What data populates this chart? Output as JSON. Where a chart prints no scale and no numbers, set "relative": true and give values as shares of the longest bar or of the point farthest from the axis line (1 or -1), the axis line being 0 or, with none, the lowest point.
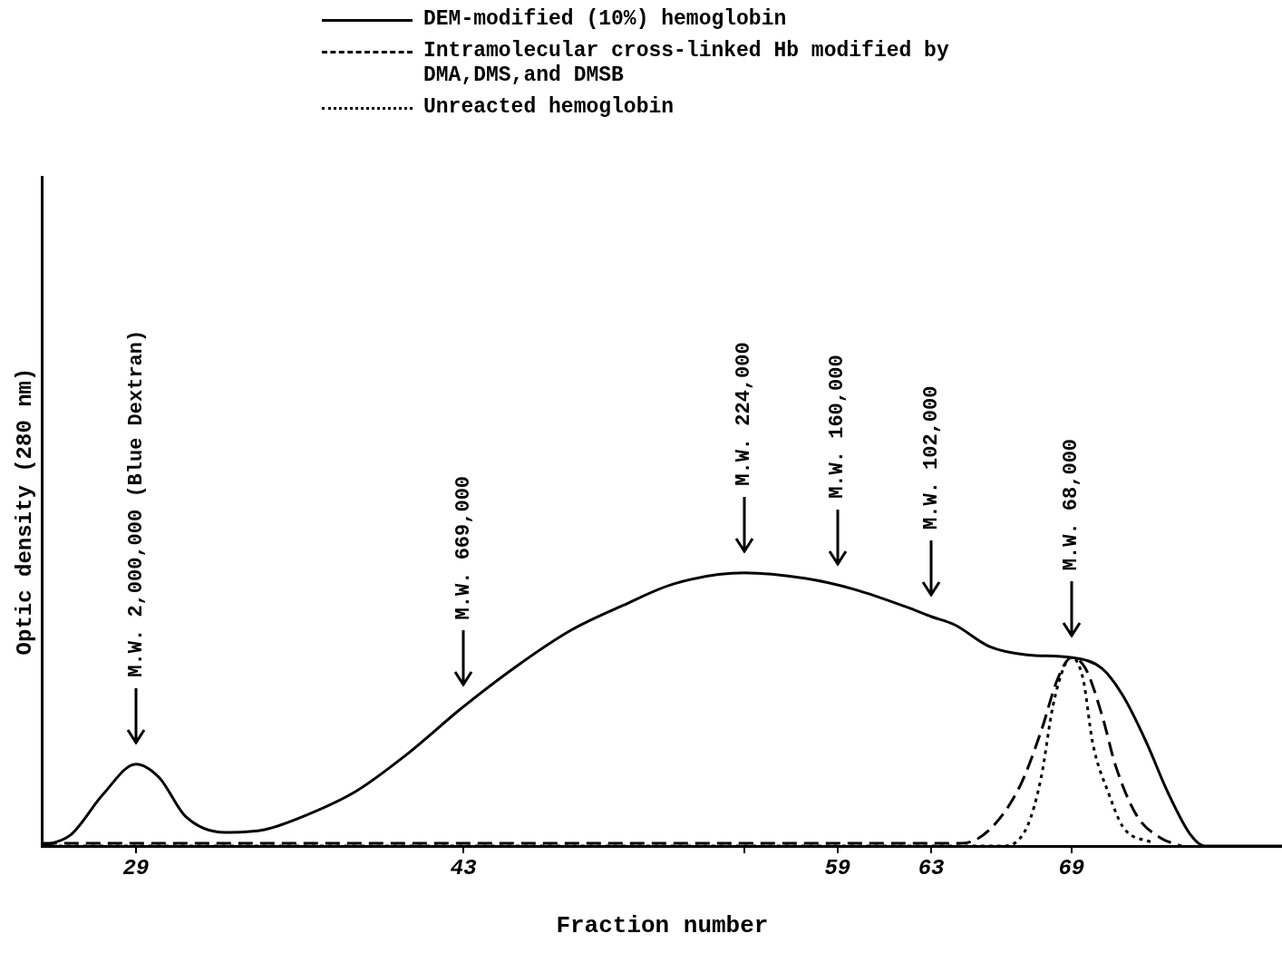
{
  "chart_data": {
    "type": "line",
    "relative": true,
    "xlabel": "Fraction number",
    "ylabel": "Optic density (280 nm)",
    "xlim": [
      25,
      78
    ],
    "xticks": [
      29,
      43,
      {
        "value": 55,
        "label": null
      },
      59,
      63,
      69
    ],
    "legend": "top",
    "marker": "none",
    "grid": false,
    "series": [
      {
        "name": "DEM-modified (10%) hemoglobin",
        "color": "#000000",
        "line_style": "solid",
        "x": [
          25,
          26.2,
          27.6,
          29,
          30.0,
          31.1,
          32.8,
          34.5,
          36.2,
          38.4,
          40.5,
          43,
          45.3,
          47.6,
          49.8,
          52.0,
          55,
          57.6,
          59.7,
          62.1,
          63,
          64.0,
          65.5,
          67.1,
          69,
          70.3,
          71.2,
          72.2,
          73.1,
          74.1,
          74.7,
          78
        ],
        "values": [
          0,
          0.04,
          0.19,
          0.3,
          0.25,
          0.11,
          0.05,
          0.06,
          0.11,
          0.2,
          0.33,
          0.51,
          0.66,
          0.79,
          0.88,
          0.96,
          1,
          0.98,
          0.94,
          0.87,
          0.84,
          0.81,
          0.73,
          0.7,
          0.69,
          0.65,
          0.55,
          0.38,
          0.2,
          0.04,
          0,
          0
        ]
      },
      {
        "name": "Intramolecular cross-linked Hb modified by DMA,DMS,and DMSB",
        "color": "#000000",
        "line_style": "dashed",
        "x": [
          25,
          64.3,
          65.5,
          66.8,
          67.7,
          68.4,
          69,
          69.6,
          70.3,
          70.9,
          71.8,
          72.8,
          73.7
        ],
        "values": [
          0.01,
          0.01,
          0.06,
          0.22,
          0.42,
          0.61,
          0.69,
          0.65,
          0.48,
          0.29,
          0.11,
          0.03,
          0
        ]
      },
      {
        "name": "Unreacted hemoglobin",
        "color": "#000000",
        "line_style": "dotted",
        "x": [
          25,
          66.1,
          67.1,
          67.7,
          68.2,
          68.7,
          69,
          69.5,
          69.9,
          70.6,
          71.2,
          72.5
        ],
        "values": [
          0,
          0,
          0.07,
          0.25,
          0.51,
          0.66,
          0.69,
          0.61,
          0.38,
          0.19,
          0.07,
          0.01
        ]
      }
    ],
    "annotations": [
      "M.W. 2,000,000 (Blue Dextran)",
      "M.W. 669,000",
      "M.W. 224,000",
      "M.W. 160,000",
      "M.W. 102,000",
      "M.W. 68,000"
    ]
  }
}
